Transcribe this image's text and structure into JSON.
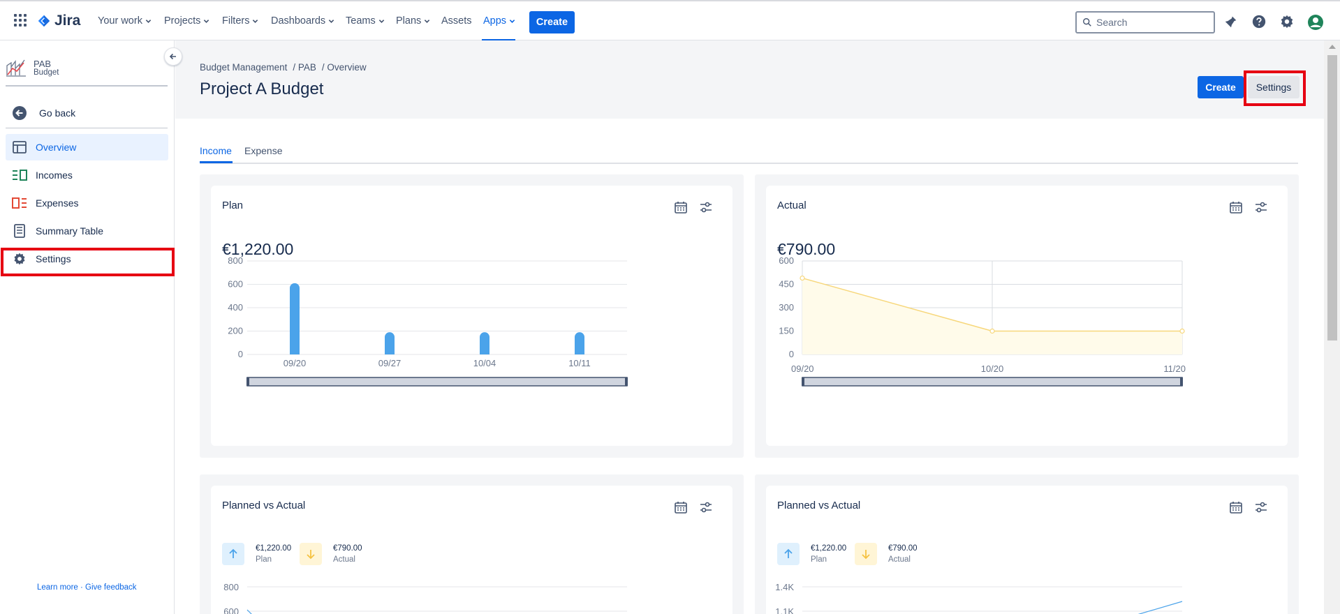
{
  "topnav": {
    "product": "Jira",
    "items": [
      {
        "label": "Your work",
        "chevron": true
      },
      {
        "label": "Projects",
        "chevron": true
      },
      {
        "label": "Filters",
        "chevron": true
      },
      {
        "label": "Dashboards",
        "chevron": true
      },
      {
        "label": "Teams",
        "chevron": true
      },
      {
        "label": "Plans",
        "chevron": true
      },
      {
        "label": "Assets",
        "chevron": false
      },
      {
        "label": "Apps",
        "chevron": true,
        "active": true
      }
    ],
    "create_label": "Create",
    "search_placeholder": "Search",
    "icons": [
      "notifications-icon",
      "help-icon",
      "settings-icon",
      "profile-avatar-icon"
    ]
  },
  "sidebar": {
    "project_name": "PAB",
    "project_sub": "Budget",
    "go_back": "Go back",
    "items": [
      {
        "label": "Overview",
        "icon": "overview-icon",
        "active": true
      },
      {
        "label": "Incomes",
        "icon": "incomes-icon"
      },
      {
        "label": "Expenses",
        "icon": "expenses-icon"
      },
      {
        "label": "Summary Table",
        "icon": "summary-table-icon"
      },
      {
        "label": "Settings",
        "icon": "gear-icon"
      }
    ],
    "feedback": "Learn more · Give feedback"
  },
  "page": {
    "breadcrumb": [
      "Budget Management",
      "/ PAB",
      "/ Overview"
    ],
    "title": "Project A Budget",
    "create_label": "Create",
    "settings_label": "Settings",
    "tabs": [
      {
        "label": "Income",
        "active": true
      },
      {
        "label": "Expense"
      }
    ]
  },
  "cards": {
    "plan": {
      "title": "Plan",
      "amount": "€1,220.00"
    },
    "actual": {
      "title": "Actual",
      "amount": "€790.00"
    },
    "pva_left": {
      "title": "Planned vs Actual",
      "plan_value": "€1,220.00",
      "plan_label": "Plan",
      "actual_value": "€790.00",
      "actual_label": "Actual"
    },
    "pva_right": {
      "title": "Planned vs Actual",
      "plan_value": "€1,220.00",
      "plan_label": "Plan",
      "actual_value": "€790.00",
      "actual_label": "Actual"
    }
  },
  "colors": {
    "accent": "#0c66e4",
    "bar": "#4ba3ea",
    "area_line": "#f7d77b",
    "area_fill": "#fffbea",
    "highlight": "#e60012"
  },
  "chart_data": [
    {
      "type": "bar",
      "title": "Plan",
      "categories": [
        "09/20",
        "09/27",
        "10/04",
        "10/11"
      ],
      "values": [
        610,
        190,
        190,
        190
      ],
      "ylim": [
        0,
        800
      ],
      "yticks": [
        "0",
        "200",
        "400",
        "600",
        "800"
      ],
      "grid": true
    },
    {
      "type": "area",
      "title": "Actual",
      "x": [
        "09/20",
        "10/20",
        "11/20"
      ],
      "values": [
        490,
        150,
        150
      ],
      "ylim": [
        0,
        600
      ],
      "yticks": [
        "0",
        "150",
        "300",
        "450",
        "600"
      ],
      "grid": true
    },
    {
      "type": "line",
      "title": "Planned vs Actual",
      "yticks": [
        "600",
        "800"
      ],
      "ylim": [
        600,
        800
      ],
      "grid": true
    },
    {
      "type": "line",
      "title": "Planned vs Actual",
      "yticks": [
        "1.1K",
        "1.4K"
      ],
      "ylim": [
        1100,
        1400
      ],
      "grid": true
    }
  ]
}
